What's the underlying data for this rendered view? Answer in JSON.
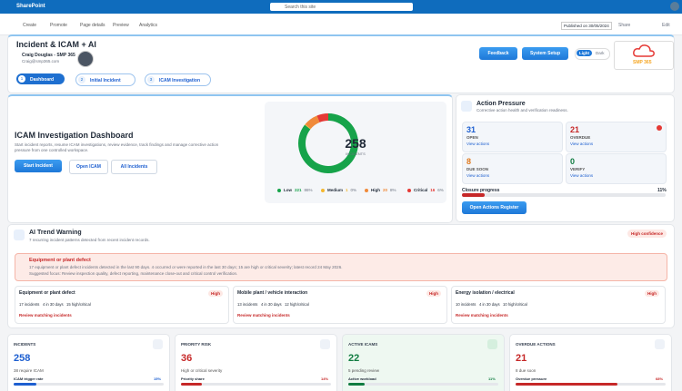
{
  "topbar": {
    "app": "SharePoint",
    "search": "Search this site"
  },
  "commandbar": {
    "items": [
      "Create",
      "Promote",
      "Page details",
      "Preview",
      "Analytics"
    ],
    "published": "Published on 30/05/2024",
    "share": "Share",
    "edit": "Edit"
  },
  "header": {
    "title": "Incident & ICAM + AI",
    "user": "Craig Douglas - SMP 365",
    "email": "Craig@smp365.com",
    "tabs": [
      {
        "num": 1,
        "label": "Dashboard"
      },
      {
        "num": 2,
        "label": "Initial Incident"
      },
      {
        "num": 3,
        "label": "ICAM Investigation"
      }
    ],
    "feedback": "Feedback",
    "setup": "System Setup",
    "theme": [
      "Light",
      "Dark"
    ],
    "logo": "SMP 365"
  },
  "dashboard": {
    "title": "ICAM Investigation Dashboard",
    "description": "Start incident reports, resume ICAM investigations, review evidence, track findings and manage corrective action pressure from one controlled workspace.",
    "buttons": [
      "Start Incident",
      "Open ICAM",
      "All Incidents"
    ],
    "donut": {
      "total": 258,
      "total_label": "INCIDENTS",
      "segments": [
        {
          "name": "Low",
          "value": 221,
          "pct": "86%",
          "color": "#16a34a"
        },
        {
          "name": "Medium",
          "value": 1,
          "pct": "0%",
          "color": "#f5b82e"
        },
        {
          "name": "High",
          "value": 20,
          "pct": "8%",
          "color": "#f08a3a"
        },
        {
          "name": "Critical",
          "value": 16,
          "pct": "6%",
          "color": "#e53935"
        }
      ]
    }
  },
  "actions": {
    "title": "Action Pressure",
    "subtitle": "Corrective action health and verification readiness.",
    "tiles": [
      {
        "value": 31,
        "label": "OPEN",
        "link": "View actions",
        "color": "#1d5fd0"
      },
      {
        "value": 21,
        "label": "OVERDUE",
        "link": "View actions",
        "color": "#c62828"
      },
      {
        "value": 8,
        "label": "DUE SOON",
        "link": "View actions",
        "color": "#e07a1f"
      },
      {
        "value": 0,
        "label": "VERIFY",
        "link": "View actions",
        "color": "#107c41"
      }
    ],
    "progress_label": "Closure progress",
    "progress": {
      "value": 11,
      "label": "11%"
    },
    "button": "Open Actions Register"
  },
  "trend": {
    "title": "AI Trend Warning",
    "subtitle": "7 recurring incident patterns detected from recent incident records.",
    "confidence": "High confidence",
    "alert": {
      "title": "Equipment or plant defect",
      "text": "17 equipment or plant defect incidents detected in the last 90 days. 4 occurred or were reported in the last 30 days; 15 are high or critical severity; latest record 24 May 2026.",
      "focus": "Suggested focus: Review inspection quality, defect reporting, maintenance close-out and critical control verification."
    },
    "cards": [
      {
        "title": "Equipment or plant defect",
        "level": "High",
        "stats": [
          "17 incidents",
          "4 in 30 days",
          "15 high/critical"
        ],
        "link": "Review matching incidents"
      },
      {
        "title": "Mobile plant / vehicle interaction",
        "level": "High",
        "stats": [
          "13 incidents",
          "4 in 30 days",
          "12 high/critical"
        ],
        "link": "Review matching incidents"
      },
      {
        "title": "Energy isolation / electrical",
        "level": "High",
        "stats": [
          "10 incidents",
          "4 in 30 days",
          "10 high/critical"
        ],
        "link": "Review matching incidents"
      }
    ]
  },
  "kpis": [
    {
      "label": "INCIDENTS",
      "value": 258,
      "sub": "38 require ICAM",
      "bar_label": "ICAM trigger rate",
      "bar": {
        "value": 15,
        "label": "15%"
      },
      "color": "#1d5fd0"
    },
    {
      "label": "PRIORITY RISK",
      "value": 36,
      "sub": "High or critical severity",
      "bar_label": "Priority share",
      "bar": {
        "value": 14,
        "label": "14%"
      },
      "color": "#c62828"
    },
    {
      "label": "ACTIVE ICAMS",
      "value": 22,
      "sub": "5 pending review",
      "bar_label": "Active workload",
      "bar": {
        "value": 11,
        "label": "11%"
      },
      "color": "#107c41"
    },
    {
      "label": "OVERDUE ACTIONS",
      "value": 21,
      "sub": "8 due soon",
      "bar_label": "Overdue pressure",
      "bar": {
        "value": 68,
        "label": "68%"
      },
      "color": "#c62828"
    }
  ]
}
